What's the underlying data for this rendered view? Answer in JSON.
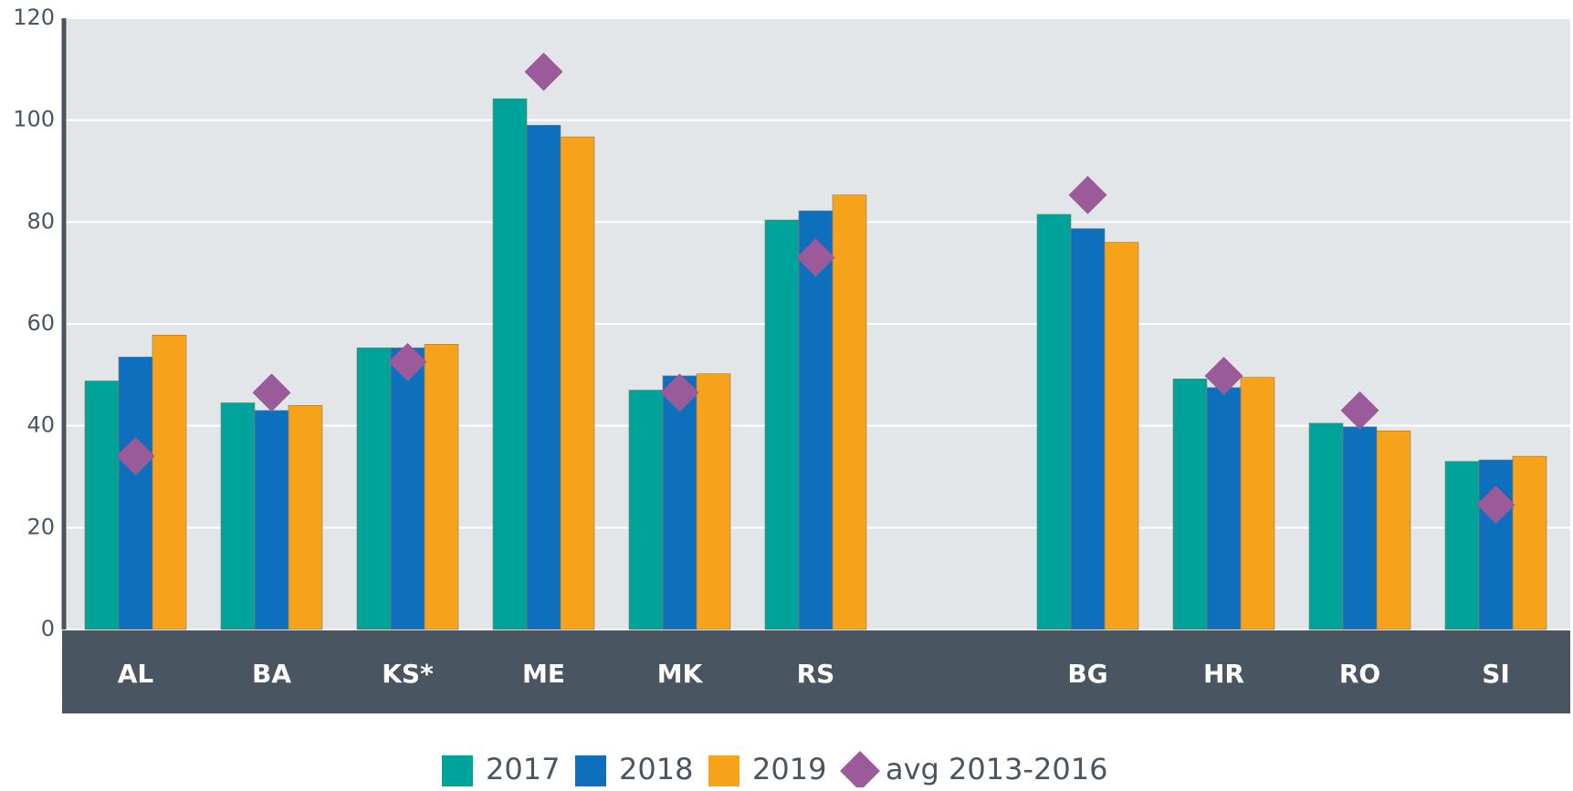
{
  "chart_data": {
    "type": "bar",
    "categories": [
      "AL",
      "BA",
      "KS*",
      "ME",
      "MK",
      "RS",
      null,
      "BG",
      "HR",
      "RO",
      "SI"
    ],
    "series": [
      {
        "name": "2017",
        "color": "#00a39a",
        "values": [
          48.8,
          44.5,
          55.3,
          104.2,
          47,
          80.4,
          null,
          81.5,
          49.2,
          40.5,
          33
        ]
      },
      {
        "name": "2018",
        "color": "#0e6fbd",
        "values": [
          53.5,
          43,
          55.3,
          99,
          49.8,
          82.2,
          null,
          78.7,
          47.5,
          39.8,
          33.3
        ]
      },
      {
        "name": "2019",
        "color": "#f7a21b",
        "values": [
          57.8,
          44,
          56,
          96.7,
          50.2,
          85.3,
          null,
          76,
          49.5,
          39,
          34
        ]
      },
      {
        "name": "avg 2013-2016",
        "type": "scatter",
        "marker": "diamond",
        "color": "#9b5a9a",
        "values": [
          34,
          46.5,
          52.5,
          109.5,
          46.5,
          73,
          null,
          85.3,
          49.8,
          43,
          24.5
        ]
      }
    ],
    "ylim": [
      0,
      120
    ],
    "yticks": [
      0,
      20,
      40,
      60,
      80,
      100,
      120
    ],
    "grid": true,
    "legend": "bottom"
  }
}
